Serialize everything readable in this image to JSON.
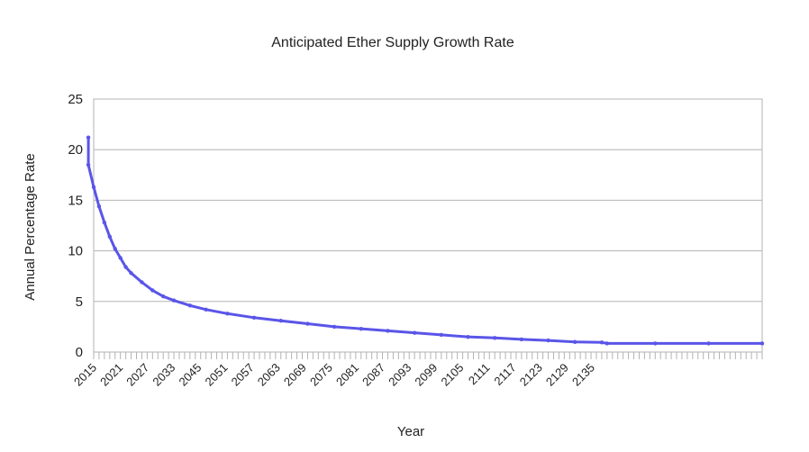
{
  "chart_data": {
    "type": "line",
    "title": "Anticipated Ether Supply Growth Rate",
    "xlabel": "Year",
    "ylabel": "Annual Percentage Rate",
    "xlim": [
      2015,
      2140
    ],
    "ylim": [
      0,
      25
    ],
    "y_ticks": [
      0,
      5,
      10,
      15,
      20,
      25
    ],
    "x_tick_labels": [
      2015,
      2021,
      2027,
      2033,
      2045,
      2051,
      2057,
      2063,
      2069,
      2075,
      2081,
      2087,
      2093,
      2099,
      2105,
      2111,
      2117,
      2123,
      2129,
      2135
    ],
    "grid": true,
    "legend": "none",
    "series": [
      {
        "color": "#5a55e8",
        "x": [
          2014,
          2014,
          2015,
          2016,
          2017,
          2018,
          2019,
          2020,
          2021,
          2022,
          2024,
          2026,
          2028,
          2030,
          2033,
          2036,
          2040,
          2045,
          2050,
          2055,
          2060,
          2065,
          2070,
          2075,
          2080,
          2085,
          2090,
          2095,
          2100,
          2105,
          2110,
          2111,
          2120,
          2130,
          2140
        ],
        "y": [
          21.2,
          18.5,
          16.3,
          14.4,
          12.8,
          11.4,
          10.2,
          9.3,
          8.4,
          7.8,
          6.9,
          6.1,
          5.5,
          5.1,
          4.6,
          4.2,
          3.8,
          3.4,
          3.1,
          2.8,
          2.5,
          2.3,
          2.1,
          1.9,
          1.7,
          1.5,
          1.4,
          1.25,
          1.15,
          1.0,
          0.95,
          0.85,
          0.85,
          0.85,
          0.85
        ]
      }
    ]
  }
}
